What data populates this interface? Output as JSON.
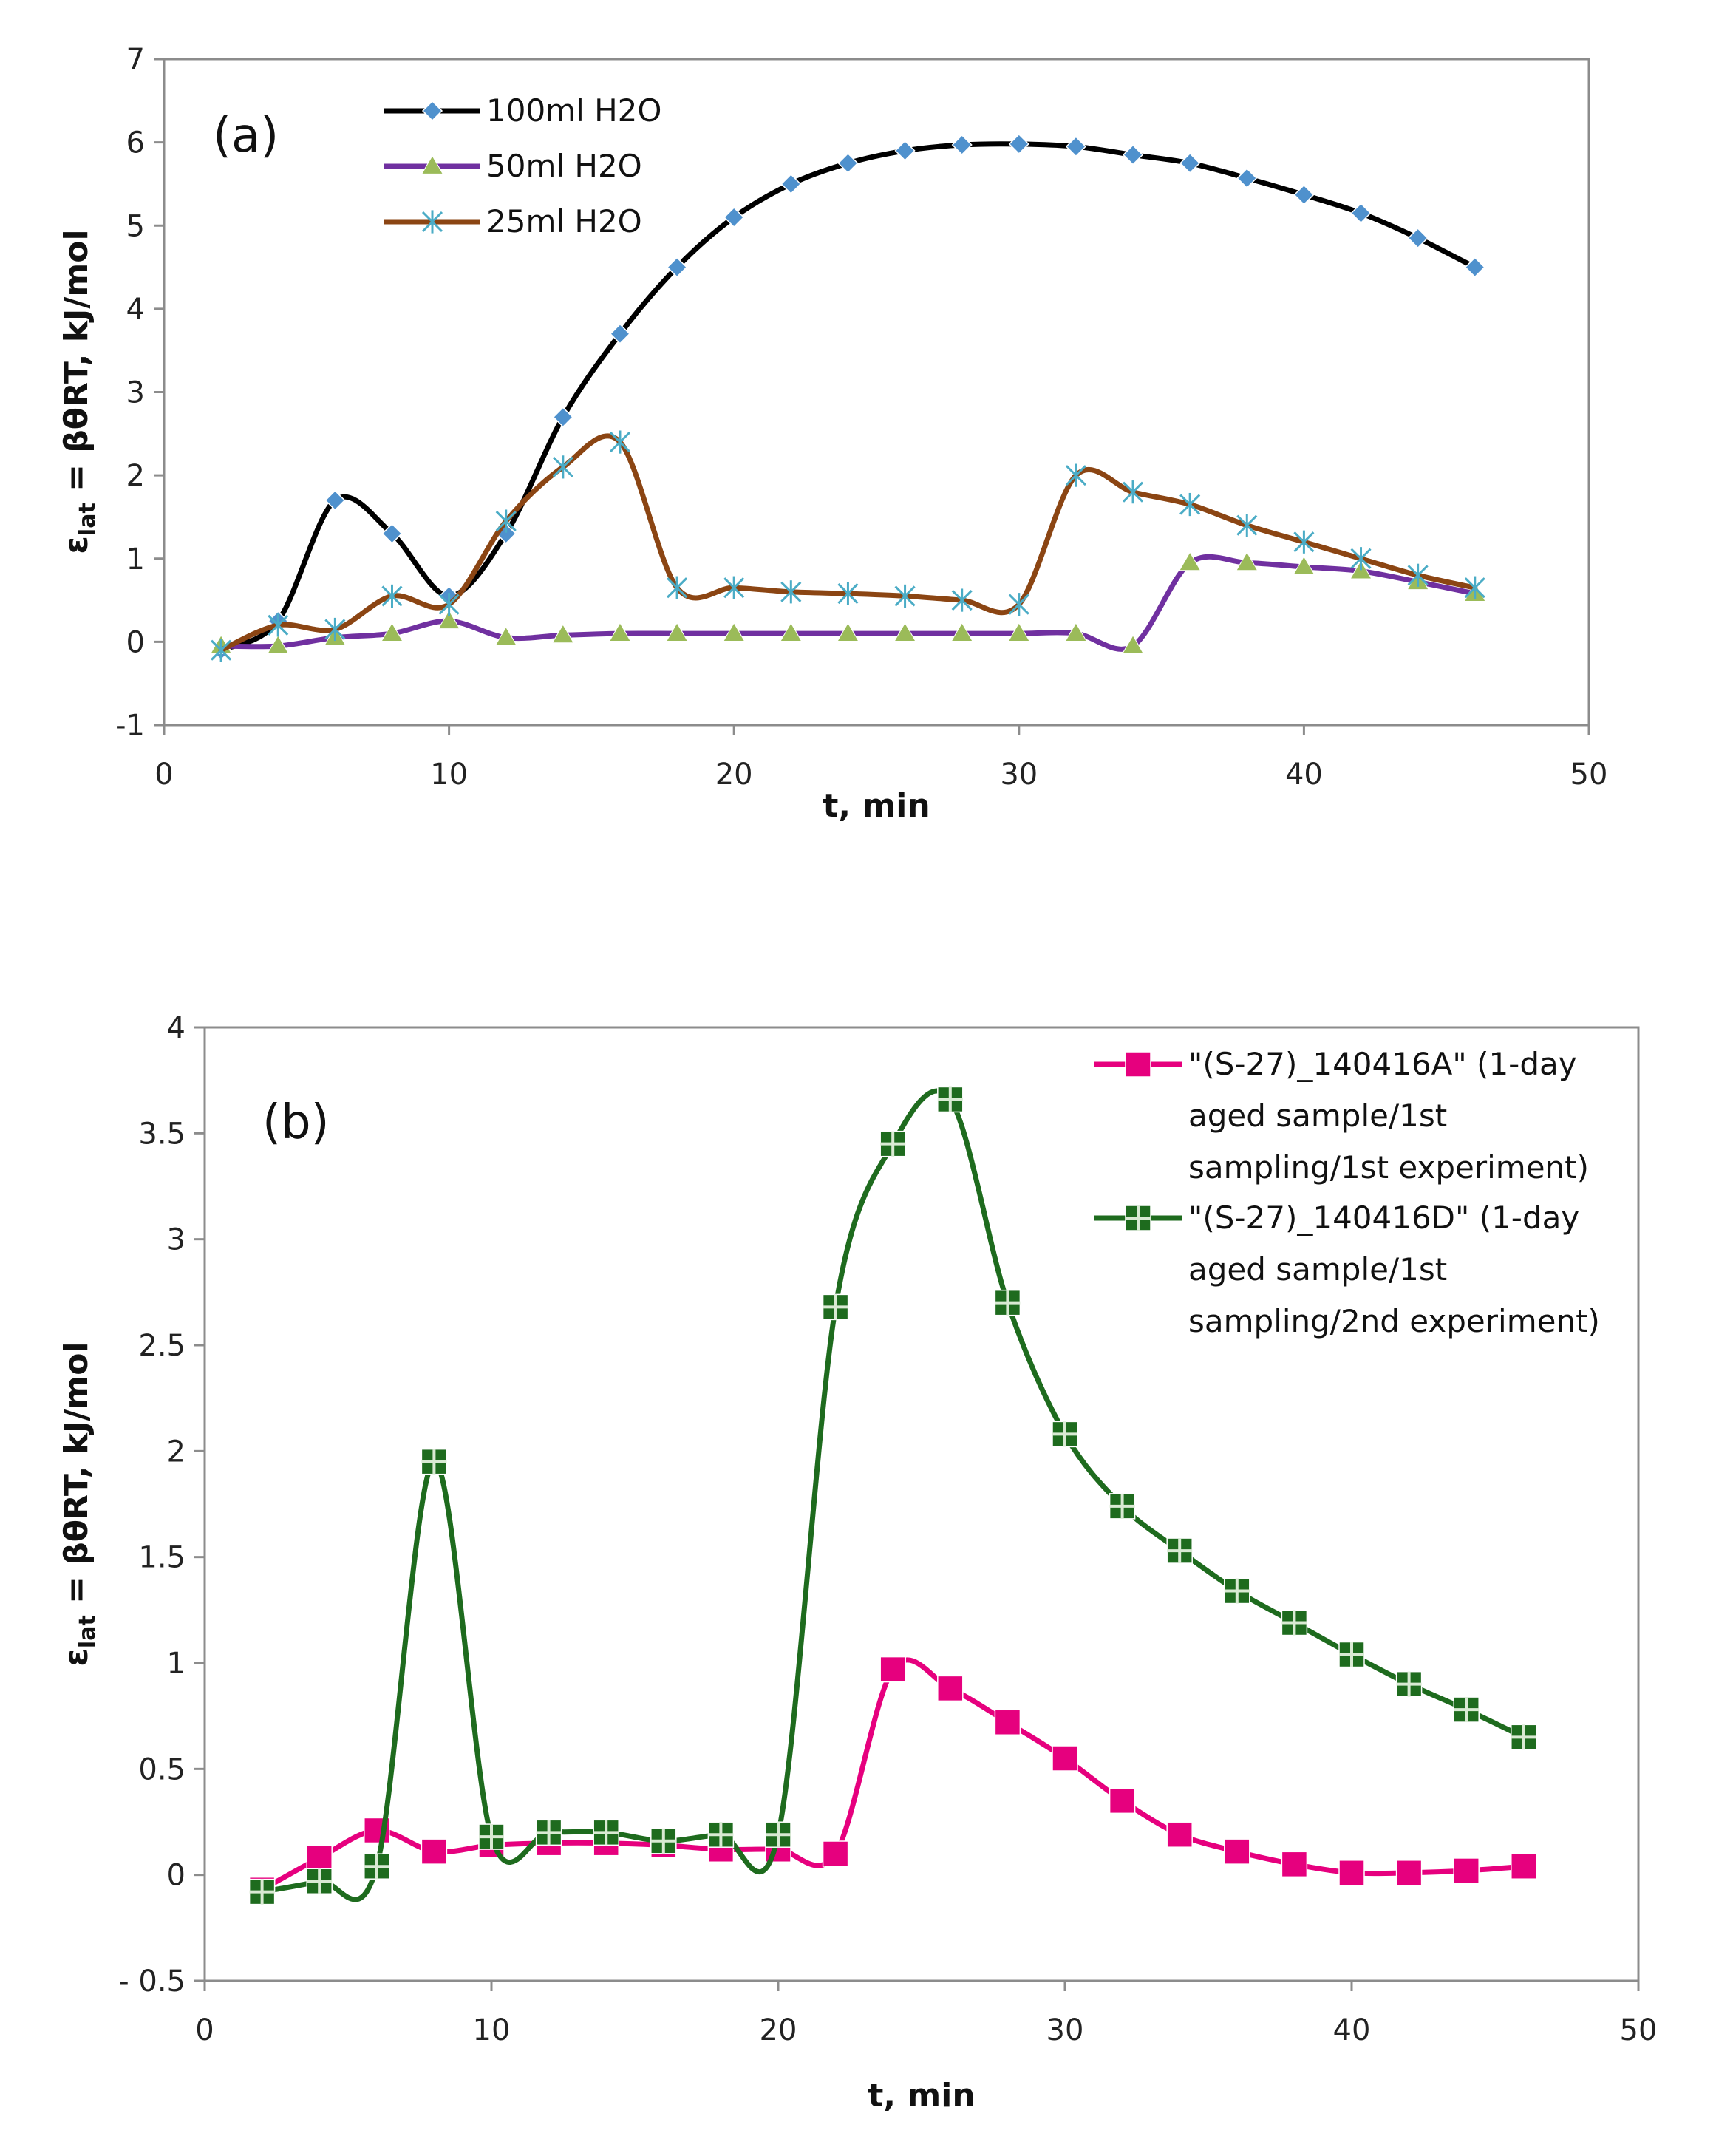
{
  "chart_data": [
    {
      "type": "line",
      "panel_label": "(a)",
      "xlabel": "t, min",
      "ylabel": "ε",
      "ylabel_sub": "lat",
      "ylabel_rest": " = βθRT, kJ/mol",
      "xlim": [
        0,
        50
      ],
      "ylim": [
        -1,
        7
      ],
      "xticks": [
        0,
        10,
        20,
        30,
        40,
        50
      ],
      "yticks": [
        -1,
        0,
        1,
        2,
        3,
        4,
        5,
        6,
        7
      ],
      "grid": false,
      "legend_position": "top-left",
      "series": [
        {
          "name": "100ml H2O",
          "color": "#000000",
          "marker": "diamond",
          "marker_color": "#4f91cd",
          "x": [
            2,
            4,
            6,
            8,
            10,
            12,
            14,
            16,
            18,
            20,
            22,
            24,
            26,
            28,
            30,
            32,
            34,
            36,
            38,
            40,
            42,
            44,
            46
          ],
          "y": [
            -0.1,
            0.25,
            1.7,
            1.3,
            0.55,
            1.3,
            2.7,
            3.7,
            4.5,
            5.1,
            5.5,
            5.75,
            5.9,
            5.97,
            5.98,
            5.95,
            5.85,
            5.75,
            5.57,
            5.37,
            5.15,
            4.85,
            4.5
          ]
        },
        {
          "name": "50ml H2O",
          "color": "#7030a0",
          "marker": "triangle",
          "marker_color": "#9bbb59",
          "x": [
            2,
            4,
            6,
            8,
            10,
            12,
            14,
            16,
            18,
            20,
            22,
            24,
            26,
            28,
            30,
            32,
            34,
            36,
            38,
            40,
            42,
            44,
            46
          ],
          "y": [
            -0.05,
            -0.05,
            0.05,
            0.1,
            0.25,
            0.05,
            0.08,
            0.1,
            0.1,
            0.1,
            0.1,
            0.1,
            0.1,
            0.1,
            0.1,
            0.1,
            -0.05,
            0.95,
            0.95,
            0.9,
            0.85,
            0.72,
            0.58
          ]
        },
        {
          "name": "25ml H2O",
          "color": "#8b4513",
          "marker": "asterisk",
          "marker_color": "#4bacc6",
          "x": [
            2,
            4,
            6,
            8,
            10,
            12,
            14,
            16,
            18,
            20,
            22,
            24,
            26,
            28,
            30,
            32,
            34,
            36,
            38,
            40,
            42,
            44,
            46
          ],
          "y": [
            -0.1,
            0.2,
            0.15,
            0.55,
            0.45,
            1.45,
            2.1,
            2.4,
            0.65,
            0.65,
            0.6,
            0.58,
            0.55,
            0.5,
            0.45,
            2.0,
            1.8,
            1.65,
            1.4,
            1.2,
            1.0,
            0.8,
            0.65
          ]
        }
      ]
    },
    {
      "type": "line",
      "panel_label": "(b)",
      "xlabel": "t, min",
      "ylabel": "ε",
      "ylabel_sub": "lat",
      "ylabel_rest": " = βθRT, kJ/mol",
      "xlim": [
        0,
        50
      ],
      "ylim": [
        -0.5,
        4
      ],
      "xticks": [
        0,
        10,
        20,
        30,
        40,
        50
      ],
      "yticks": [
        -0.5,
        0,
        0.5,
        1,
        1.5,
        2,
        2.5,
        3,
        3.5,
        4
      ],
      "ytick_labels": [
        "- 0.5",
        "0",
        "0.5",
        "1",
        "1.5",
        "2",
        "2.5",
        "3",
        "3.5",
        "4"
      ],
      "grid": false,
      "legend_position": "top-right",
      "series": [
        {
          "name_lines": [
            "\"(S-27)_140416A\" (1-day",
            "aged sample/1st",
            "sampling/1st experiment)"
          ],
          "color": "#e6007e",
          "marker": "square",
          "marker_color": "#e6007e",
          "x": [
            2,
            4,
            6,
            8,
            10,
            12,
            14,
            16,
            18,
            20,
            22,
            24,
            26,
            28,
            30,
            32,
            34,
            36,
            38,
            40,
            42,
            44,
            46
          ],
          "y": [
            -0.07,
            0.08,
            0.21,
            0.11,
            0.14,
            0.15,
            0.15,
            0.14,
            0.12,
            0.12,
            0.1,
            0.97,
            0.88,
            0.72,
            0.55,
            0.35,
            0.19,
            0.11,
            0.05,
            0.01,
            0.01,
            0.02,
            0.04
          ]
        },
        {
          "name_lines": [
            "\"(S-27)_140416D\" (1-day",
            "aged sample/1st",
            "sampling/2nd experiment)"
          ],
          "color": "#1e6b1e",
          "marker": "square-cross",
          "marker_color": "#1e6b1e",
          "x": [
            2,
            4,
            6,
            8,
            10,
            12,
            14,
            16,
            18,
            20,
            22,
            24,
            26,
            28,
            30,
            32,
            34,
            36,
            38,
            40,
            42,
            44,
            46
          ],
          "y": [
            -0.08,
            -0.03,
            0.04,
            1.95,
            0.18,
            0.2,
            0.2,
            0.16,
            0.19,
            0.19,
            2.68,
            3.45,
            3.66,
            2.7,
            2.08,
            1.74,
            1.53,
            1.34,
            1.19,
            1.04,
            0.9,
            0.78,
            0.65
          ]
        }
      ]
    }
  ]
}
